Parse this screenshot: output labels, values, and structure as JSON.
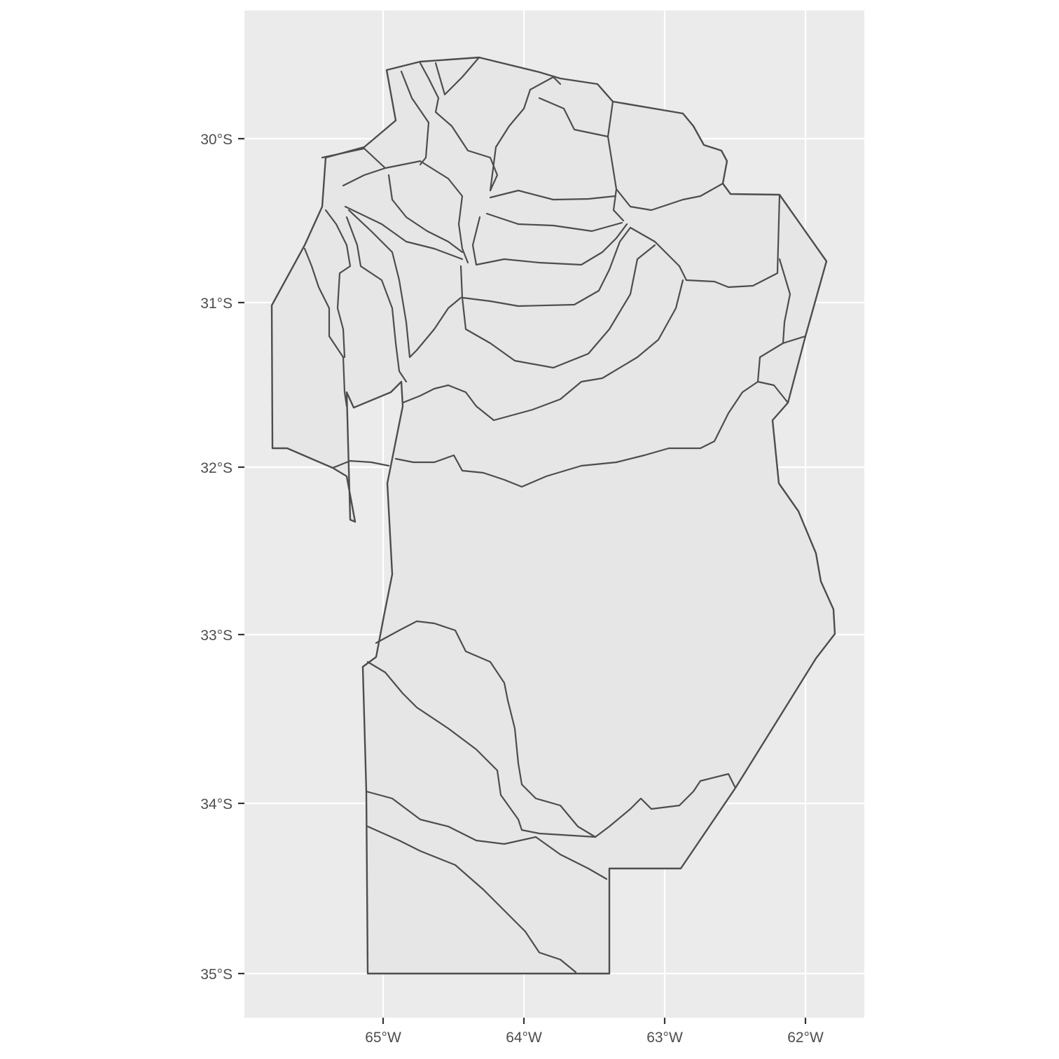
{
  "map": {
    "type": "choropleth-outline",
    "region_fill": "#e6e6e6",
    "border_color": "#4d4d4d",
    "panel_background": "#ebebeb",
    "grid": true,
    "x_ticks": [
      "65°W",
      "64°W",
      "63°W",
      "62°W"
    ],
    "y_ticks": [
      "30°S",
      "31°S",
      "32°S",
      "33°S",
      "34°S",
      "35°S"
    ]
  }
}
